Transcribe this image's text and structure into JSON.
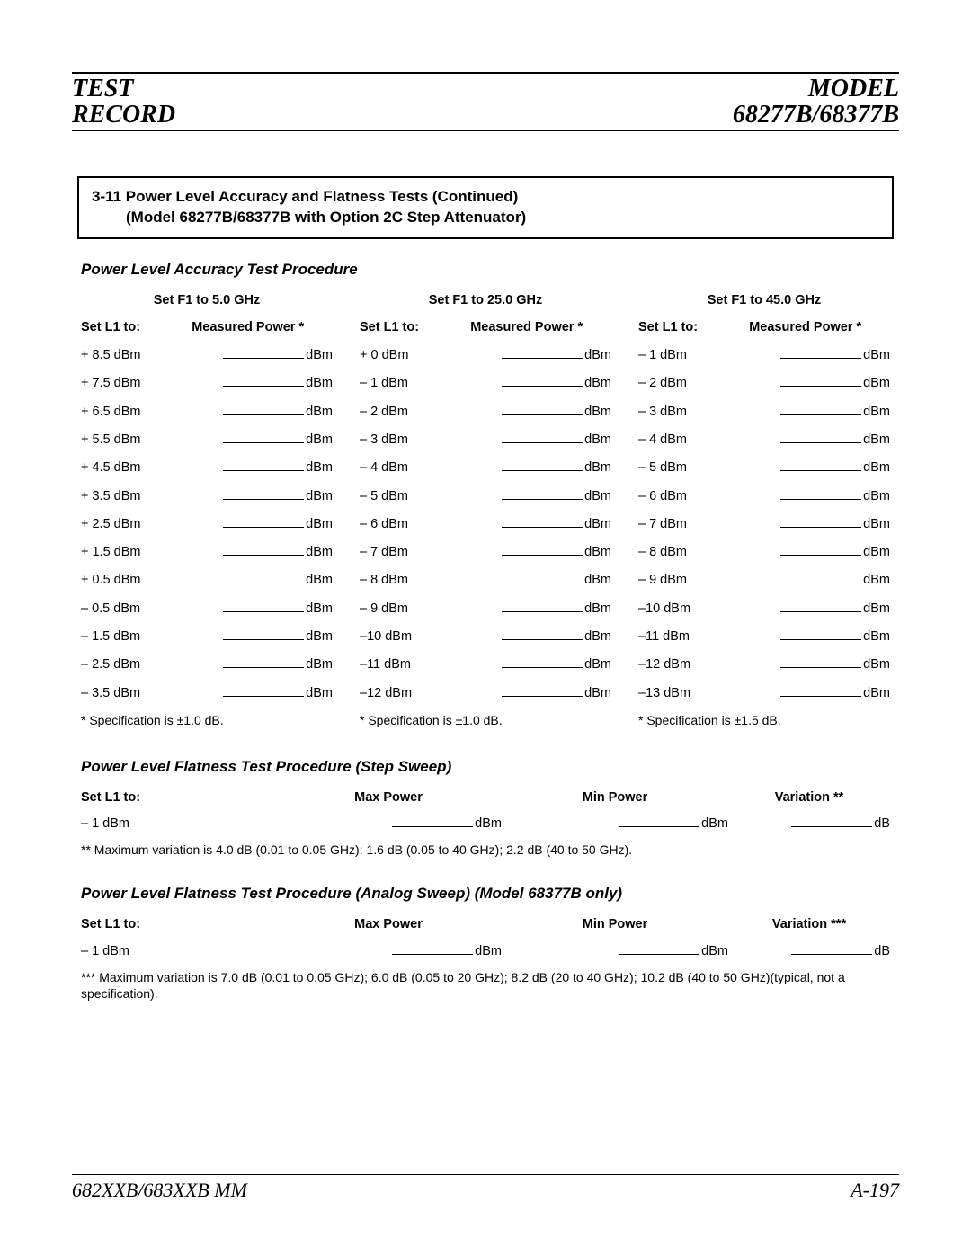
{
  "header": {
    "left_line1": "TEST",
    "left_line2": "RECORD",
    "right_line1": "MODEL",
    "right_line2": "68277B/68377B"
  },
  "section_box": {
    "line1": "3-11 Power Level Accuracy and Flatness Tests (Continued)",
    "line2": "(Model 68277B/68377B with Option 2C Step Attenuator)"
  },
  "accuracy": {
    "heading": "Power Level Accuracy Test Procedure",
    "set_l1_label": "Set L1 to:",
    "measured_label": "Measured Power *",
    "unit": "dBm",
    "columns": [
      {
        "freq_label": "Set F1 to 5.0 GHz",
        "spec_note": "* Specification is ±1.0 dB.",
        "rows": [
          "+ 8.5 dBm",
          "+ 7.5 dBm",
          "+ 6.5 dBm",
          "+ 5.5 dBm",
          "+ 4.5 dBm",
          "+ 3.5 dBm",
          "+ 2.5 dBm",
          "+ 1.5 dBm",
          "+ 0.5 dBm",
          "– 0.5 dBm",
          "– 1.5 dBm",
          "– 2.5 dBm",
          "– 3.5 dBm"
        ]
      },
      {
        "freq_label": "Set F1 to 25.0 GHz",
        "spec_note": "* Specification is ±1.0 dB.",
        "rows": [
          "+ 0 dBm",
          "– 1 dBm",
          "– 2 dBm",
          "– 3 dBm",
          "– 4 dBm",
          "– 5 dBm",
          "– 6 dBm",
          "– 7 dBm",
          "– 8 dBm",
          "– 9 dBm",
          "–10 dBm",
          "–11 dBm",
          "–12 dBm"
        ]
      },
      {
        "freq_label": "Set F1 to 45.0 GHz",
        "spec_note": "* Specification is ±1.5 dB.",
        "rows": [
          "– 1 dBm",
          "– 2 dBm",
          "– 3 dBm",
          "– 4 dBm",
          "– 5 dBm",
          "– 6 dBm",
          "– 7 dBm",
          "– 8 dBm",
          "– 9 dBm",
          "–10 dBm",
          "–11 dBm",
          "–12 dBm",
          "–13 dBm"
        ]
      }
    ]
  },
  "flat_step": {
    "heading": "Power Level Flatness Test Procedure (Step Sweep)",
    "col_set": "Set L1 to:",
    "col_max": "Max Power",
    "col_min": "Min Power",
    "col_var": "Variation **",
    "set_value": "– 1 dBm",
    "unit_dbm": "dBm",
    "unit_db": "dB",
    "note": "** Maximum variation is 4.0 dB (0.01 to 0.05 GHz); 1.6 dB (0.05 to 40 GHz); 2.2 dB (40 to 50 GHz)."
  },
  "flat_analog": {
    "heading": "Power Level Flatness Test Procedure (Analog Sweep) (Model 68377B only)",
    "col_set": "Set L1 to:",
    "col_max": "Max Power",
    "col_min": "Min Power",
    "col_var": "Variation ***",
    "set_value": "– 1 dBm",
    "unit_dbm": "dBm",
    "unit_db": "dB",
    "note": "*** Maximum variation is 7.0 dB (0.01 to 0.05 GHz); 6.0 dB (0.05 to 20 GHz); 8.2 dB (20 to 40 GHz); 10.2 dB (40 to 50 GHz)(typical, not a specification)."
  },
  "footer": {
    "left": "682XXB/683XXB MM",
    "right": "A-197"
  }
}
